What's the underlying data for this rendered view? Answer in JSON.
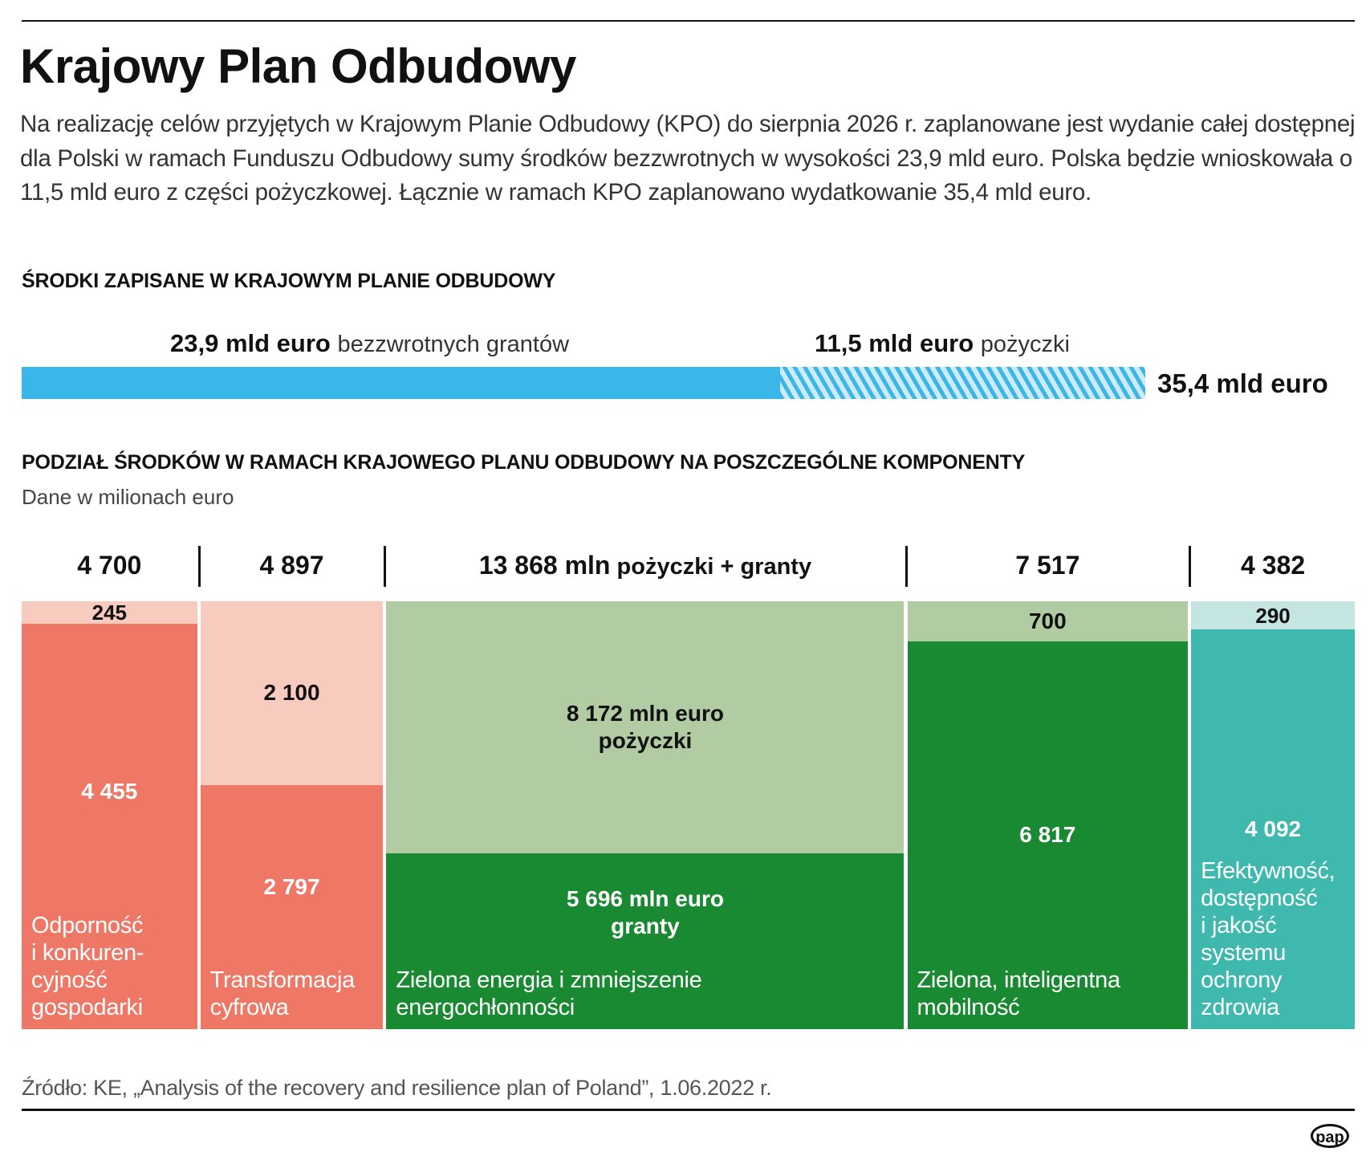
{
  "title": "Krajowy Plan Odbudowy",
  "intro": "Na realizację celów przyjętych w Krajowym Planie Odbudowy (KPO) do sierpnia 2026 r. zaplanowane jest wydanie całej dostępnej dla Polski w ramach Funduszu Odbudowy sumy środków bezzwrotnych w wysokości 23,9 mld euro. Polska będzie wnioskowała o 11,5 mld euro z części pożyczkowej. Łącznie w ramach KPO zaplanowano wydatkowanie 35,4 mld euro.",
  "section1": {
    "heading": "ŚRODKI ZAPISANE W KRAJOWYM PLANIE ODBUDOWY",
    "grants_value": "23,9 mld euro",
    "grants_label": "bezzwrotnych grantów",
    "loans_value": "11,5 mld euro",
    "loans_label": "pożyczki",
    "total_label": "35,4 mld euro"
  },
  "section2": {
    "heading": "PODZIAŁ ŚRODKÓW W RAMACH KRAJOWEGO PLANU ODBUDOWY NA POSZCZEGÓLNE KOMPONENTY",
    "subtitle": "Dane w milionach euro"
  },
  "source": "Źródło: KE, „Analysis of the recovery and resilience plan of Poland”, 1.06.2022 r.",
  "logo": "pap",
  "chart_data": [
    {
      "type": "bar",
      "orientation": "horizontal-stacked",
      "unit": "mld euro",
      "series": [
        {
          "name": "bezzwrotnych grantów",
          "value": 23.9,
          "color": "#3bb6e8",
          "pattern": "solid"
        },
        {
          "name": "pożyczki",
          "value": 11.5,
          "color": "#3bb6e8",
          "pattern": "hatched"
        }
      ],
      "total": 35.4
    },
    {
      "type": "bar",
      "orientation": "marimekko",
      "unit": "mln euro",
      "components": [
        {
          "name": "Odporność i konkuren-cyjność gospodarki",
          "name_lines": [
            "Odporność",
            "i konkuren-",
            "cyjność",
            "gospodarki"
          ],
          "total": "4 700",
          "total_value": 4700,
          "upper": {
            "label": "245",
            "value": 245
          },
          "lower": {
            "label": "4 455",
            "value": 4455
          },
          "color_dark": "#ef7766",
          "color_light": "#f8cbbf"
        },
        {
          "name": "Transformacja cyfrowa",
          "name_lines": [
            "Transformacja",
            "cyfrowa"
          ],
          "total": "4 897",
          "total_value": 4897,
          "upper": {
            "label": "2 100",
            "value": 2100
          },
          "lower": {
            "label": "2 797",
            "value": 2797
          },
          "color_dark": "#ef7766",
          "color_light": "#f8cbbf"
        },
        {
          "name": "Zielona energia i zmniejszenie energochłonności",
          "name_lines": [
            "Zielona energia i zmniejszenie",
            "energochłonności"
          ],
          "total": "13 868 mln",
          "total_suffix": "pożyczki + granty",
          "total_value": 13868,
          "upper": {
            "label": "8 172 mln euro",
            "label2": "pożyczki",
            "value": 8172
          },
          "lower": {
            "label": "5 696 mln euro",
            "label2": "granty",
            "value": 5696
          },
          "color_dark": "#198a32",
          "color_light": "#b1cba3"
        },
        {
          "name": "Zielona, inteligentna mobilność",
          "name_lines": [
            "Zielona, inteligentna",
            "mobilność"
          ],
          "total": "7 517",
          "total_value": 7517,
          "upper": {
            "label": "700",
            "value": 700
          },
          "lower": {
            "label": "6 817",
            "value": 6817
          },
          "color_dark": "#198a32",
          "color_light": "#b1cba3"
        },
        {
          "name": "Efektywność, dostępność i jakość systemu ochrony zdrowia",
          "name_lines": [
            "Efektywność,",
            "dostępność",
            "i jakość",
            "systemu",
            "ochrony",
            "zdrowia"
          ],
          "total": "4 382",
          "total_value": 4382,
          "upper": {
            "label": "290",
            "value": 290
          },
          "lower": {
            "label": "4 092",
            "value": 4092
          },
          "color_dark": "#3fb9ae",
          "color_light": "#c5e5e2"
        }
      ]
    }
  ]
}
